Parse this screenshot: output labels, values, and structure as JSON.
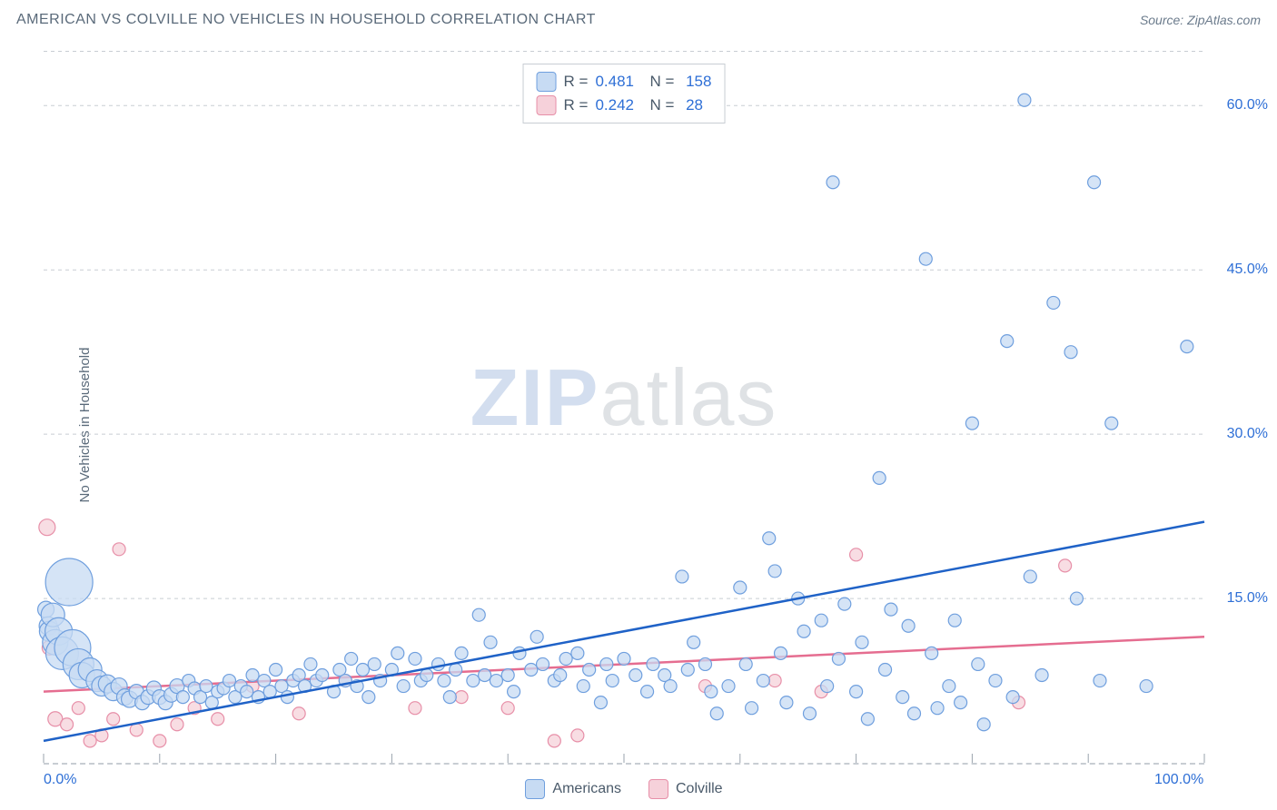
{
  "header": {
    "title": "AMERICAN VS COLVILLE NO VEHICLES IN HOUSEHOLD CORRELATION CHART",
    "source_label": "Source: ZipAtlas.com"
  },
  "ylabel": "No Vehicles in Household",
  "watermark": {
    "part1": "ZIP",
    "part2": "atlas"
  },
  "chart": {
    "type": "scatter",
    "xlim": [
      0,
      100
    ],
    "ylim": [
      0,
      65
    ],
    "xticks": [
      0,
      10,
      20,
      30,
      40,
      50,
      60,
      70,
      80,
      90,
      100
    ],
    "yticks": [
      15,
      30,
      45,
      60
    ],
    "ytick_labels": [
      "15.0%",
      "30.0%",
      "45.0%",
      "60.0%"
    ],
    "xtick_labels": {
      "min": "0.0%",
      "max": "100.0%"
    },
    "background_color": "#ffffff",
    "grid_color": "#c8cdd3",
    "grid_dash": "4 4",
    "axis_color": "#9aa3ad",
    "label_fontsize": 15,
    "tick_fontsize": 16,
    "tick_label_color": "#2e6fd6",
    "marker_base_radius": 7,
    "bubble_radius_large": 26,
    "marker_stroke_width": 1.2,
    "trendline_width": 2.5
  },
  "series": {
    "americans": {
      "label": "Americans",
      "fill": "#c7dbf3",
      "stroke": "#6f9fde",
      "trend_color": "#1f62c7",
      "corr_R": "0.481",
      "corr_N": "158",
      "trendline": {
        "x1": 0,
        "y1": 2.0,
        "x2": 100,
        "y2": 22.0
      },
      "points": [
        {
          "x": 0.2,
          "y": 14.0,
          "r": 9
        },
        {
          "x": 0.4,
          "y": 12.5,
          "r": 10
        },
        {
          "x": 0.5,
          "y": 12.0,
          "r": 11
        },
        {
          "x": 0.8,
          "y": 13.5,
          "r": 13
        },
        {
          "x": 1.0,
          "y": 11.0,
          "r": 14
        },
        {
          "x": 1.3,
          "y": 12.0,
          "r": 15
        },
        {
          "x": 1.6,
          "y": 10.0,
          "r": 18
        },
        {
          "x": 2.2,
          "y": 16.5,
          "r": 26
        },
        {
          "x": 2.5,
          "y": 10.5,
          "r": 20
        },
        {
          "x": 3.0,
          "y": 9.0,
          "r": 17
        },
        {
          "x": 3.3,
          "y": 8.0,
          "r": 14
        },
        {
          "x": 4.0,
          "y": 8.5,
          "r": 13
        },
        {
          "x": 4.6,
          "y": 7.5,
          "r": 12
        },
        {
          "x": 5.0,
          "y": 7.0,
          "r": 11
        },
        {
          "x": 5.5,
          "y": 7.2,
          "r": 10
        },
        {
          "x": 6.0,
          "y": 6.5,
          "r": 10
        },
        {
          "x": 6.5,
          "y": 7.0,
          "r": 9
        },
        {
          "x": 7.0,
          "y": 6.0,
          "r": 9
        },
        {
          "x": 7.4,
          "y": 5.8,
          "r": 9
        },
        {
          "x": 8.0,
          "y": 6.5,
          "r": 8
        },
        {
          "x": 8.5,
          "y": 5.5,
          "r": 8
        },
        {
          "x": 9.0,
          "y": 6.0,
          "r": 8
        },
        {
          "x": 9.5,
          "y": 6.8,
          "r": 8
        },
        {
          "x": 10.0,
          "y": 6.0,
          "r": 8
        },
        {
          "x": 10.5,
          "y": 5.5,
          "r": 8
        },
        {
          "x": 11.0,
          "y": 6.2,
          "r": 8
        },
        {
          "x": 11.5,
          "y": 7.0,
          "r": 8
        },
        {
          "x": 12.0,
          "y": 6.0,
          "r": 7
        },
        {
          "x": 12.5,
          "y": 7.5,
          "r": 7
        },
        {
          "x": 13.0,
          "y": 6.8,
          "r": 7
        },
        {
          "x": 13.5,
          "y": 6.0,
          "r": 7
        },
        {
          "x": 14.0,
          "y": 7.0,
          "r": 7
        },
        {
          "x": 14.5,
          "y": 5.5,
          "r": 7
        },
        {
          "x": 15.0,
          "y": 6.5,
          "r": 7
        },
        {
          "x": 15.5,
          "y": 6.8,
          "r": 7
        },
        {
          "x": 16.0,
          "y": 7.5,
          "r": 7
        },
        {
          "x": 16.5,
          "y": 6.0,
          "r": 7
        },
        {
          "x": 17.0,
          "y": 7.0,
          "r": 7
        },
        {
          "x": 17.5,
          "y": 6.5,
          "r": 7
        },
        {
          "x": 18.0,
          "y": 8.0,
          "r": 7
        },
        {
          "x": 18.5,
          "y": 6.0,
          "r": 7
        },
        {
          "x": 19.0,
          "y": 7.5,
          "r": 7
        },
        {
          "x": 19.5,
          "y": 6.5,
          "r": 7
        },
        {
          "x": 20.0,
          "y": 8.5,
          "r": 7
        },
        {
          "x": 20.5,
          "y": 7.0,
          "r": 7
        },
        {
          "x": 21.0,
          "y": 6.0,
          "r": 7
        },
        {
          "x": 21.5,
          "y": 7.5,
          "r": 7
        },
        {
          "x": 22.0,
          "y": 8.0,
          "r": 7
        },
        {
          "x": 22.5,
          "y": 7.0,
          "r": 7
        },
        {
          "x": 23.0,
          "y": 9.0,
          "r": 7
        },
        {
          "x": 23.5,
          "y": 7.5,
          "r": 7
        },
        {
          "x": 24.0,
          "y": 8.0,
          "r": 7
        },
        {
          "x": 25.0,
          "y": 6.5,
          "r": 7
        },
        {
          "x": 25.5,
          "y": 8.5,
          "r": 7
        },
        {
          "x": 26.0,
          "y": 7.5,
          "r": 7
        },
        {
          "x": 26.5,
          "y": 9.5,
          "r": 7
        },
        {
          "x": 27.0,
          "y": 7.0,
          "r": 7
        },
        {
          "x": 27.5,
          "y": 8.5,
          "r": 7
        },
        {
          "x": 28.0,
          "y": 6.0,
          "r": 7
        },
        {
          "x": 28.5,
          "y": 9.0,
          "r": 7
        },
        {
          "x": 29.0,
          "y": 7.5,
          "r": 7
        },
        {
          "x": 30.0,
          "y": 8.5,
          "r": 7
        },
        {
          "x": 30.5,
          "y": 10.0,
          "r": 7
        },
        {
          "x": 31.0,
          "y": 7.0,
          "r": 7
        },
        {
          "x": 32.0,
          "y": 9.5,
          "r": 7
        },
        {
          "x": 32.5,
          "y": 7.5,
          "r": 7
        },
        {
          "x": 33.0,
          "y": 8.0,
          "r": 7
        },
        {
          "x": 34.0,
          "y": 9.0,
          "r": 7
        },
        {
          "x": 34.5,
          "y": 7.5,
          "r": 7
        },
        {
          "x": 35.0,
          "y": 6.0,
          "r": 7
        },
        {
          "x": 35.5,
          "y": 8.5,
          "r": 7
        },
        {
          "x": 36.0,
          "y": 10.0,
          "r": 7
        },
        {
          "x": 37.0,
          "y": 7.5,
          "r": 7
        },
        {
          "x": 37.5,
          "y": 13.5,
          "r": 7
        },
        {
          "x": 38.0,
          "y": 8.0,
          "r": 7
        },
        {
          "x": 38.5,
          "y": 11.0,
          "r": 7
        },
        {
          "x": 39.0,
          "y": 7.5,
          "r": 7
        },
        {
          "x": 40.0,
          "y": 8.0,
          "r": 7
        },
        {
          "x": 40.5,
          "y": 6.5,
          "r": 7
        },
        {
          "x": 41.0,
          "y": 10.0,
          "r": 7
        },
        {
          "x": 42.0,
          "y": 8.5,
          "r": 7
        },
        {
          "x": 42.5,
          "y": 11.5,
          "r": 7
        },
        {
          "x": 43.0,
          "y": 9.0,
          "r": 7
        },
        {
          "x": 44.0,
          "y": 7.5,
          "r": 7
        },
        {
          "x": 44.5,
          "y": 8.0,
          "r": 7
        },
        {
          "x": 45.0,
          "y": 9.5,
          "r": 7
        },
        {
          "x": 46.0,
          "y": 10.0,
          "r": 7
        },
        {
          "x": 46.5,
          "y": 7.0,
          "r": 7
        },
        {
          "x": 47.0,
          "y": 8.5,
          "r": 7
        },
        {
          "x": 48.0,
          "y": 5.5,
          "r": 7
        },
        {
          "x": 48.5,
          "y": 9.0,
          "r": 7
        },
        {
          "x": 49.0,
          "y": 7.5,
          "r": 7
        },
        {
          "x": 50.0,
          "y": 9.5,
          "r": 7
        },
        {
          "x": 51.0,
          "y": 8.0,
          "r": 7
        },
        {
          "x": 52.0,
          "y": 6.5,
          "r": 7
        },
        {
          "x": 52.5,
          "y": 9.0,
          "r": 7
        },
        {
          "x": 53.5,
          "y": 8.0,
          "r": 7
        },
        {
          "x": 54.0,
          "y": 7.0,
          "r": 7
        },
        {
          "x": 55.0,
          "y": 17.0,
          "r": 7
        },
        {
          "x": 55.5,
          "y": 8.5,
          "r": 7
        },
        {
          "x": 56.0,
          "y": 11.0,
          "r": 7
        },
        {
          "x": 57.0,
          "y": 9.0,
          "r": 7
        },
        {
          "x": 57.5,
          "y": 6.5,
          "r": 7
        },
        {
          "x": 58.0,
          "y": 4.5,
          "r": 7
        },
        {
          "x": 59.0,
          "y": 7.0,
          "r": 7
        },
        {
          "x": 60.0,
          "y": 16.0,
          "r": 7
        },
        {
          "x": 60.5,
          "y": 9.0,
          "r": 7
        },
        {
          "x": 61.0,
          "y": 5.0,
          "r": 7
        },
        {
          "x": 62.0,
          "y": 7.5,
          "r": 7
        },
        {
          "x": 62.5,
          "y": 20.5,
          "r": 7
        },
        {
          "x": 63.0,
          "y": 17.5,
          "r": 7
        },
        {
          "x": 63.5,
          "y": 10.0,
          "r": 7
        },
        {
          "x": 64.0,
          "y": 5.5,
          "r": 7
        },
        {
          "x": 65.0,
          "y": 15.0,
          "r": 7
        },
        {
          "x": 65.5,
          "y": 12.0,
          "r": 7
        },
        {
          "x": 66.0,
          "y": 4.5,
          "r": 7
        },
        {
          "x": 67.0,
          "y": 13.0,
          "r": 7
        },
        {
          "x": 67.5,
          "y": 7.0,
          "r": 7
        },
        {
          "x": 68.0,
          "y": 53.0,
          "r": 7
        },
        {
          "x": 68.5,
          "y": 9.5,
          "r": 7
        },
        {
          "x": 69.0,
          "y": 14.5,
          "r": 7
        },
        {
          "x": 70.0,
          "y": 6.5,
          "r": 7
        },
        {
          "x": 70.5,
          "y": 11.0,
          "r": 7
        },
        {
          "x": 71.0,
          "y": 4.0,
          "r": 7
        },
        {
          "x": 72.0,
          "y": 26.0,
          "r": 7
        },
        {
          "x": 72.5,
          "y": 8.5,
          "r": 7
        },
        {
          "x": 73.0,
          "y": 14.0,
          "r": 7
        },
        {
          "x": 74.0,
          "y": 6.0,
          "r": 7
        },
        {
          "x": 74.5,
          "y": 12.5,
          "r": 7
        },
        {
          "x": 75.0,
          "y": 4.5,
          "r": 7
        },
        {
          "x": 76.0,
          "y": 46.0,
          "r": 7
        },
        {
          "x": 76.5,
          "y": 10.0,
          "r": 7
        },
        {
          "x": 77.0,
          "y": 5.0,
          "r": 7
        },
        {
          "x": 78.0,
          "y": 7.0,
          "r": 7
        },
        {
          "x": 78.5,
          "y": 13.0,
          "r": 7
        },
        {
          "x": 79.0,
          "y": 5.5,
          "r": 7
        },
        {
          "x": 80.0,
          "y": 31.0,
          "r": 7
        },
        {
          "x": 80.5,
          "y": 9.0,
          "r": 7
        },
        {
          "x": 81.0,
          "y": 3.5,
          "r": 7
        },
        {
          "x": 82.0,
          "y": 7.5,
          "r": 7
        },
        {
          "x": 83.0,
          "y": 38.5,
          "r": 7
        },
        {
          "x": 83.5,
          "y": 6.0,
          "r": 7
        },
        {
          "x": 84.5,
          "y": 60.5,
          "r": 7
        },
        {
          "x": 85.0,
          "y": 17.0,
          "r": 7
        },
        {
          "x": 86.0,
          "y": 8.0,
          "r": 7
        },
        {
          "x": 87.0,
          "y": 42.0,
          "r": 7
        },
        {
          "x": 88.5,
          "y": 37.5,
          "r": 7
        },
        {
          "x": 89.0,
          "y": 15.0,
          "r": 7
        },
        {
          "x": 90.5,
          "y": 53.0,
          "r": 7
        },
        {
          "x": 91.0,
          "y": 7.5,
          "r": 7
        },
        {
          "x": 92.0,
          "y": 31.0,
          "r": 7
        },
        {
          "x": 95.0,
          "y": 7.0,
          "r": 7
        },
        {
          "x": 98.5,
          "y": 38.0,
          "r": 7
        }
      ]
    },
    "colville": {
      "label": "Colville",
      "fill": "#f6d1da",
      "stroke": "#e78fa8",
      "trend_color": "#e56d90",
      "corr_R": "0.242",
      "corr_N": "28",
      "trendline": {
        "x1": 0,
        "y1": 6.5,
        "x2": 100,
        "y2": 11.5
      },
      "points": [
        {
          "x": 0.3,
          "y": 21.5,
          "r": 9
        },
        {
          "x": 0.5,
          "y": 10.5,
          "r": 8
        },
        {
          "x": 1.0,
          "y": 4.0,
          "r": 8
        },
        {
          "x": 2.0,
          "y": 3.5,
          "r": 7
        },
        {
          "x": 3.0,
          "y": 5.0,
          "r": 7
        },
        {
          "x": 4.0,
          "y": 2.0,
          "r": 7
        },
        {
          "x": 5.0,
          "y": 2.5,
          "r": 7
        },
        {
          "x": 6.0,
          "y": 4.0,
          "r": 7
        },
        {
          "x": 6.5,
          "y": 19.5,
          "r": 7
        },
        {
          "x": 8.0,
          "y": 3.0,
          "r": 7
        },
        {
          "x": 10.0,
          "y": 2.0,
          "r": 7
        },
        {
          "x": 11.5,
          "y": 3.5,
          "r": 7
        },
        {
          "x": 13.0,
          "y": 5.0,
          "r": 7
        },
        {
          "x": 15.0,
          "y": 4.0,
          "r": 7
        },
        {
          "x": 18.0,
          "y": 7.0,
          "r": 7
        },
        {
          "x": 22.0,
          "y": 4.5,
          "r": 7
        },
        {
          "x": 26.0,
          "y": 7.5,
          "r": 7
        },
        {
          "x": 32.0,
          "y": 5.0,
          "r": 7
        },
        {
          "x": 36.0,
          "y": 6.0,
          "r": 7
        },
        {
          "x": 40.0,
          "y": 5.0,
          "r": 7
        },
        {
          "x": 44.0,
          "y": 2.0,
          "r": 7
        },
        {
          "x": 46.0,
          "y": 2.5,
          "r": 7
        },
        {
          "x": 57.0,
          "y": 7.0,
          "r": 7
        },
        {
          "x": 63.0,
          "y": 7.5,
          "r": 7
        },
        {
          "x": 67.0,
          "y": 6.5,
          "r": 7
        },
        {
          "x": 70.0,
          "y": 19.0,
          "r": 7
        },
        {
          "x": 84.0,
          "y": 5.5,
          "r": 7
        },
        {
          "x": 88.0,
          "y": 18.0,
          "r": 7
        }
      ]
    }
  },
  "bottom_legend": [
    {
      "key": "americans",
      "label": "Americans"
    },
    {
      "key": "colville",
      "label": "Colville"
    }
  ],
  "corr_box": {
    "R_label": "R =",
    "N_label": "N =",
    "rows": [
      {
        "key": "americans"
      },
      {
        "key": "colville"
      }
    ]
  }
}
